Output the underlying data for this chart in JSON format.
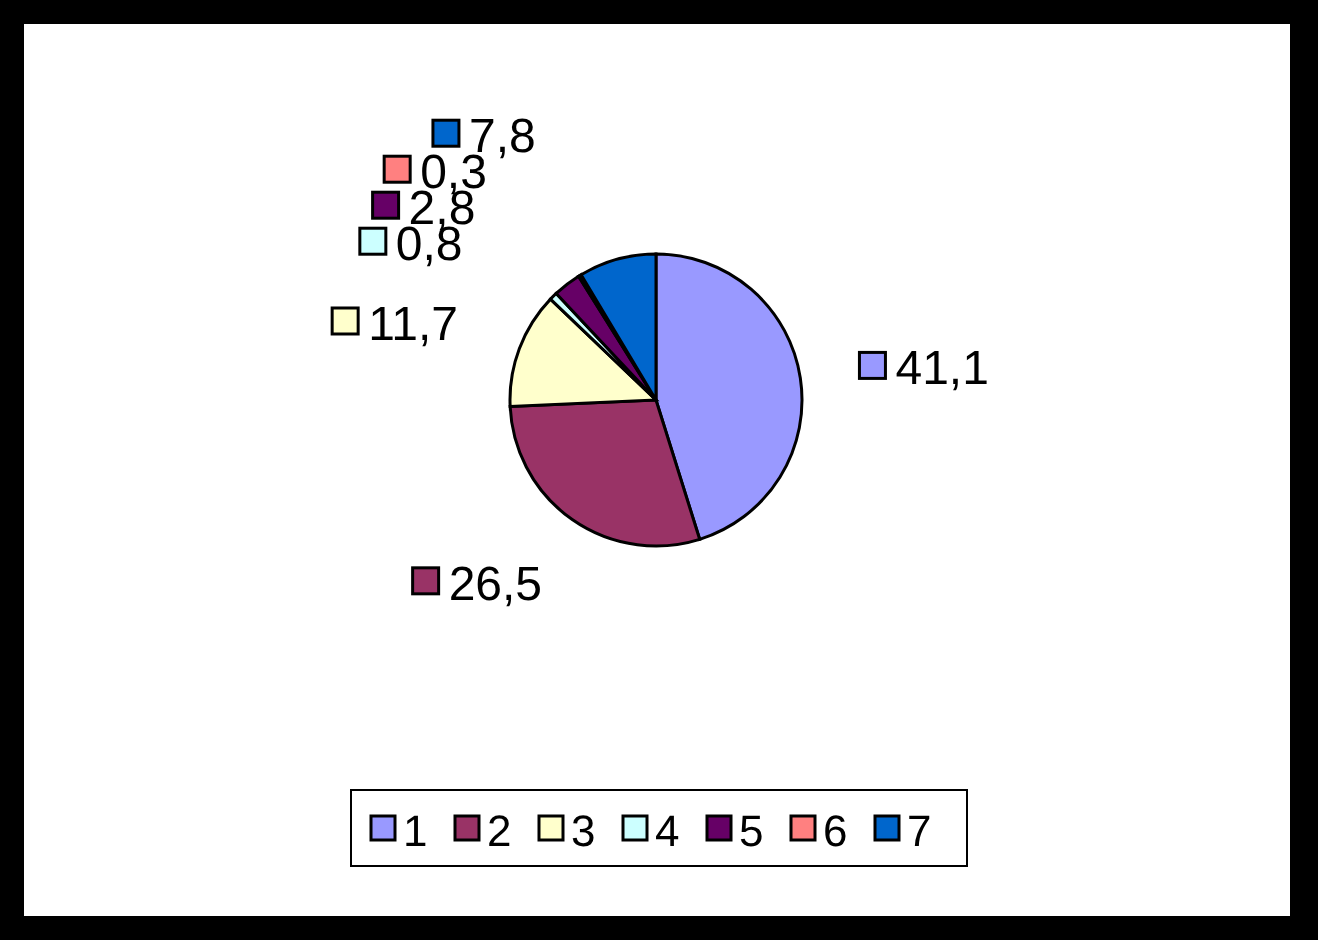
{
  "chart_data": {
    "type": "pie",
    "categories": [
      "1",
      "2",
      "3",
      "4",
      "5",
      "6",
      "7"
    ],
    "values": [
      41.1,
      26.5,
      11.7,
      0.8,
      2.8,
      0.3,
      7.8
    ],
    "colors": [
      "#9999ff",
      "#993366",
      "#ffffcc",
      "#ccffff",
      "#660066",
      "#ff8080",
      "#0066cc"
    ],
    "value_labels": [
      "41,1",
      "26,5",
      "11,7",
      "0,8",
      "2,8",
      "0,3",
      "7,8"
    ],
    "legend": "bottom"
  }
}
